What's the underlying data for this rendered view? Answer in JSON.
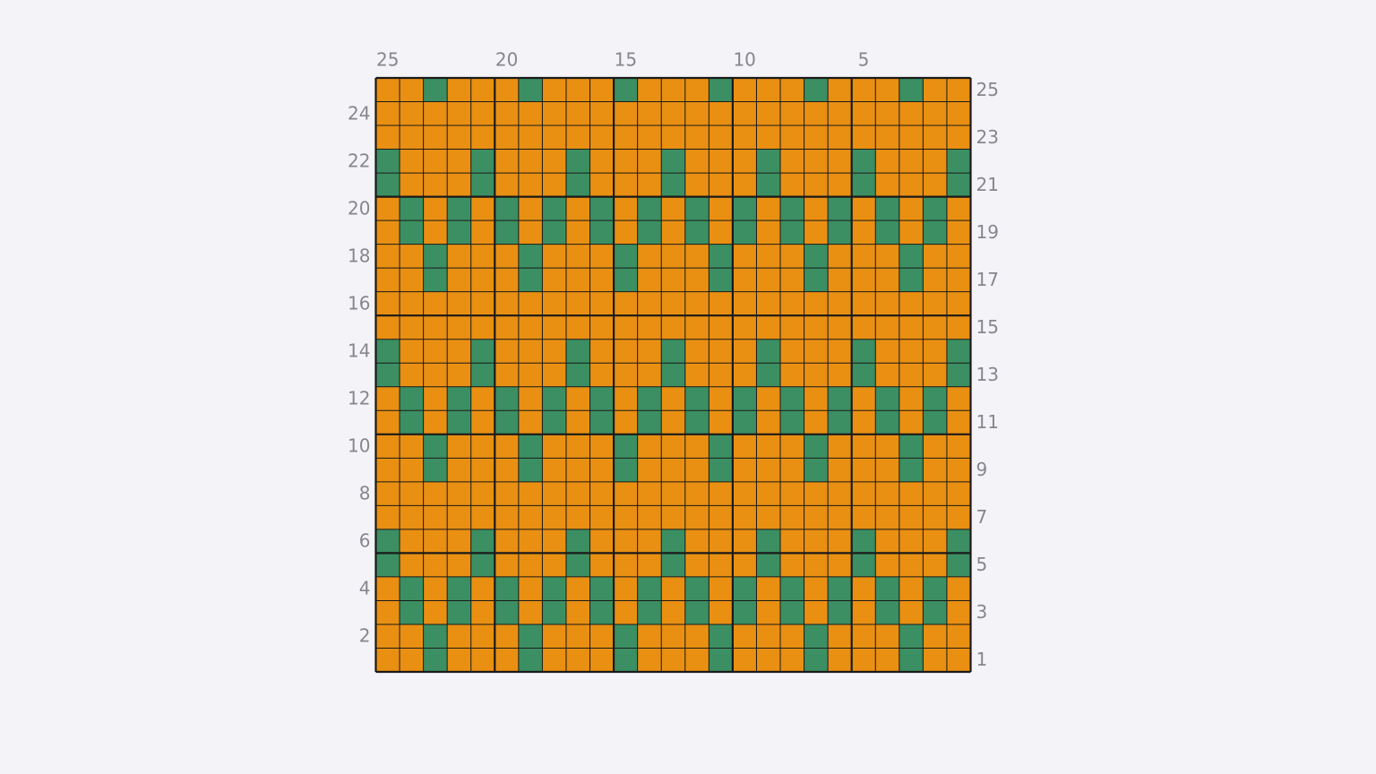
{
  "chart": {
    "colors": {
      "O": "#e98f12",
      "G": "#3b8f62"
    },
    "rows": [
      "OOGOOOGOOOGOOOGOOOGOOOGOO",
      "OOOOOOOOOOOOOOOOOOOOOOOOO",
      "OOOOOOOOOOOOOOOOOOOOOOOOO",
      "GOOOGOOOGOOOGOOOGOOOGOOOG",
      "GOOOGOOOGOOOGOOOGOOOGOOOG",
      "OGOGOGOGOGOGOGOGOGOGOGOGO",
      "OGOGOGOGOGOGOGOGOGOGOGOGO",
      "OOGOOOGOOOGOOOGOOOGOOOGOO",
      "OOGOOOGOOOGOOOGOOOGOOOGOO",
      "OOOOOOOOOOOOOOOOOOOOOOOOO",
      "OOOOOOOOOOOOOOOOOOOOOOOOO",
      "GOOOGOOOGOOOGOOOGOOOGOOOG",
      "GOOOGOOOGOOOGOOOGOOOGOOOG",
      "OGOGOGOGOGOGOGOGOGOGOGOGO",
      "OGOGOGOGOGOGOGOGOGOGOGOGO",
      "OOGOOOGOOOGOOOGOOOGOOOGOO",
      "OOGOOOGOOOGOOOGOOOGOOOGOO",
      "OOOOOOOOOOOOOOOOOOOOOOOOO",
      "OOOOOOOOOOOOOOOOOOOOOOOOO",
      "GOOOGOOOGOOOGOOOGOOOGOOOG",
      "GOOOGOOOGOOOGOOOGOOOGOOOG",
      "OGOGOGOGOGOGOGOGOGOGOGOGO",
      "OGOGOGOGOGOGOGOGOGOGOGOGO",
      "OOGOOOGOOOGOOOGOOOGOOOGOO",
      "OOGOOOGOOOGOOOGOOOGOOOGOO"
    ],
    "column_labels": [
      25,
      20,
      15,
      10,
      5
    ],
    "row_labels_left": [
      24,
      22,
      20,
      18,
      16,
      14,
      12,
      10,
      8,
      6,
      4,
      2
    ],
    "row_labels_right": [
      25,
      23,
      21,
      19,
      17,
      15,
      13,
      11,
      9,
      7,
      5,
      3,
      1
    ]
  }
}
